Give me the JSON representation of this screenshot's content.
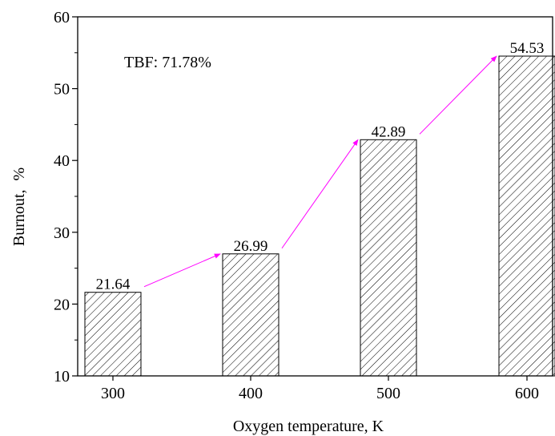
{
  "chart_data": {
    "type": "bar",
    "categories": [
      "300",
      "400",
      "500",
      "600"
    ],
    "values": [
      21.64,
      26.99,
      42.89,
      54.53
    ],
    "data_labels": [
      "21.64",
      "26.99",
      "42.89",
      "54.53"
    ],
    "title": "",
    "xlabel": "Oxygen temperature, K",
    "ylabel": "Burnout, %",
    "ylim": [
      10,
      60
    ],
    "yticks": [
      "10",
      "20",
      "30",
      "40",
      "50",
      "60"
    ],
    "grid": false,
    "legend": "none",
    "annotation": "TBF: 71.78%",
    "bar_fill": "hatched",
    "bar_stroke": "#000000",
    "arrow_color": "#ff00ff"
  }
}
